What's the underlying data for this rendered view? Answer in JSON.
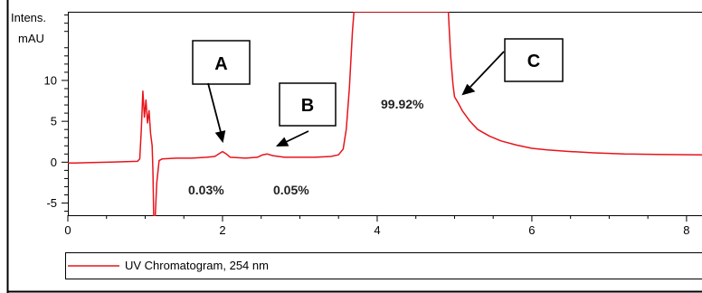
{
  "chart_data": {
    "type": "line",
    "y_axis_label_line1": "Intens.",
    "y_axis_label_line2": "mAU",
    "xlim": [
      0,
      8.2
    ],
    "ylim": [
      -6.6,
      18.4
    ],
    "x_ticks": [
      0,
      2,
      4,
      6,
      8
    ],
    "x_tick_labels": [
      "0",
      "2",
      "4",
      "6",
      "8"
    ],
    "y_ticks": [
      -5,
      0,
      5,
      10
    ],
    "y_tick_labels": [
      "-5",
      "0",
      "5",
      "10"
    ],
    "grid": false,
    "legend_position": "bottom",
    "series": [
      {
        "name": "UV Chromatogram, 254 nm",
        "color": "#e8141b",
        "points": [
          [
            0.0,
            -0.1
          ],
          [
            0.1,
            -0.1
          ],
          [
            0.3,
            -0.05
          ],
          [
            0.5,
            0.0
          ],
          [
            0.7,
            0.05
          ],
          [
            0.9,
            0.1
          ],
          [
            0.93,
            0.4
          ],
          [
            0.95,
            4.0
          ],
          [
            0.97,
            8.7
          ],
          [
            0.99,
            5.5
          ],
          [
            1.01,
            7.6
          ],
          [
            1.03,
            4.8
          ],
          [
            1.05,
            6.3
          ],
          [
            1.07,
            3.5
          ],
          [
            1.09,
            2.0
          ],
          [
            1.1,
            -1.0
          ],
          [
            1.11,
            -6.6
          ],
          [
            1.13,
            -6.6
          ],
          [
            1.15,
            -2.5
          ],
          [
            1.18,
            0.2
          ],
          [
            1.22,
            0.4
          ],
          [
            1.4,
            0.5
          ],
          [
            1.6,
            0.5
          ],
          [
            1.8,
            0.6
          ],
          [
            1.9,
            0.7
          ],
          [
            1.95,
            1.0
          ],
          [
            2.0,
            1.3
          ],
          [
            2.05,
            1.0
          ],
          [
            2.1,
            0.6
          ],
          [
            2.3,
            0.5
          ],
          [
            2.45,
            0.6
          ],
          [
            2.52,
            0.9
          ],
          [
            2.58,
            1.0
          ],
          [
            2.65,
            0.8
          ],
          [
            2.8,
            0.6
          ],
          [
            3.0,
            0.6
          ],
          [
            3.2,
            0.6
          ],
          [
            3.4,
            0.7
          ],
          [
            3.5,
            0.9
          ],
          [
            3.56,
            1.6
          ],
          [
            3.6,
            4.0
          ],
          [
            3.64,
            9.0
          ],
          [
            3.68,
            16.0
          ],
          [
            3.7,
            18.4
          ],
          [
            4.92,
            18.4
          ],
          [
            4.95,
            13.0
          ],
          [
            4.98,
            9.5
          ],
          [
            5.0,
            8.0
          ],
          [
            5.05,
            7.2
          ],
          [
            5.1,
            6.3
          ],
          [
            5.2,
            5.0
          ],
          [
            5.3,
            4.0
          ],
          [
            5.45,
            3.2
          ],
          [
            5.6,
            2.6
          ],
          [
            5.8,
            2.1
          ],
          [
            6.0,
            1.7
          ],
          [
            6.2,
            1.5
          ],
          [
            6.5,
            1.3
          ],
          [
            6.8,
            1.15
          ],
          [
            7.2,
            1.0
          ],
          [
            7.6,
            0.95
          ],
          [
            8.2,
            0.9
          ]
        ]
      }
    ],
    "peak_labels": [
      {
        "label": "A",
        "percent": "0.03%"
      },
      {
        "label": "B",
        "percent": "0.05%"
      },
      {
        "label": "C",
        "percent": "99.92%"
      }
    ]
  }
}
